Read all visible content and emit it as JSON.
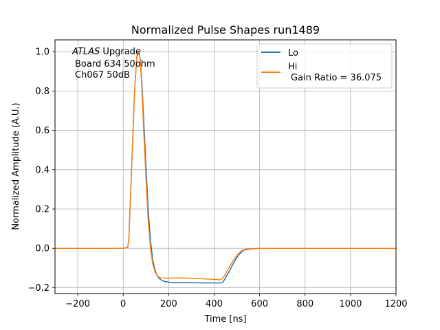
{
  "chart_data": {
    "type": "line",
    "title": "Normalized Pulse Shapes run1489",
    "xlabel": "Time [ns]",
    "ylabel": "Normalized Amplitude (A.U.)",
    "xlim": [
      -300,
      1200
    ],
    "ylim": [
      -0.23,
      1.06
    ],
    "grid": true,
    "xticks": [
      -200,
      0,
      200,
      400,
      600,
      800,
      1000,
      1200
    ],
    "yticks": [
      -0.2,
      0.0,
      0.2,
      0.4,
      0.6,
      0.8,
      1.0
    ],
    "xtick_labels": [
      "−200",
      "0",
      "200",
      "400",
      "600",
      "800",
      "1000",
      "1200"
    ],
    "ytick_labels": [
      "−0.2",
      "0.0",
      "0.2",
      "0.4",
      "0.6",
      "0.8",
      "1.0"
    ],
    "annotation": {
      "line1_italic": "ATLAS",
      "line1_rest": " Upgrade",
      "line2": "Board 634 50ohm",
      "line3": "Ch067 50dB"
    },
    "legend_position": "top-right",
    "series": [
      {
        "name": "Lo",
        "legend_label": "Lo",
        "color": "#1f77b4",
        "x": [
          -300,
          0,
          20,
          25,
          30,
          40,
          50,
          60,
          65,
          70,
          75,
          80,
          85,
          90,
          100,
          110,
          120,
          130,
          140,
          150,
          160,
          170,
          180,
          200,
          220,
          250,
          300,
          350,
          400,
          430,
          440,
          450,
          470,
          490,
          510,
          530,
          560,
          600,
          800,
          1000,
          1200
        ],
        "y": [
          0.0,
          0.0,
          0.005,
          0.05,
          0.2,
          0.5,
          0.8,
          0.97,
          1.0,
          0.99,
          0.96,
          0.88,
          0.78,
          0.66,
          0.42,
          0.2,
          0.04,
          -0.06,
          -0.11,
          -0.14,
          -0.155,
          -0.163,
          -0.168,
          -0.172,
          -0.175,
          -0.175,
          -0.175,
          -0.176,
          -0.176,
          -0.176,
          -0.17,
          -0.15,
          -0.11,
          -0.065,
          -0.03,
          -0.01,
          -0.003,
          0.0,
          0.0,
          0.0,
          0.0
        ]
      },
      {
        "name": "Hi",
        "legend_label": "Hi",
        "legend_sublabel": "Gain Ratio = 36.075",
        "color": "#ff7f0e",
        "x": [
          -300,
          0,
          20,
          25,
          30,
          40,
          50,
          60,
          65,
          70,
          75,
          80,
          85,
          90,
          100,
          110,
          120,
          130,
          140,
          150,
          160,
          170,
          180,
          200,
          220,
          250,
          300,
          350,
          400,
          425,
          435,
          445,
          460,
          480,
          500,
          520,
          540,
          560,
          600,
          800,
          1000,
          1200
        ],
        "y": [
          0.0,
          0.0,
          0.005,
          0.05,
          0.2,
          0.5,
          0.8,
          0.98,
          1.0,
          0.99,
          0.95,
          0.86,
          0.74,
          0.6,
          0.36,
          0.14,
          0.0,
          -0.08,
          -0.12,
          -0.14,
          -0.148,
          -0.151,
          -0.152,
          -0.152,
          -0.151,
          -0.15,
          -0.152,
          -0.155,
          -0.158,
          -0.16,
          -0.155,
          -0.14,
          -0.11,
          -0.07,
          -0.035,
          -0.012,
          -0.004,
          -0.002,
          0.0,
          0.0,
          0.0,
          0.0
        ]
      }
    ]
  }
}
